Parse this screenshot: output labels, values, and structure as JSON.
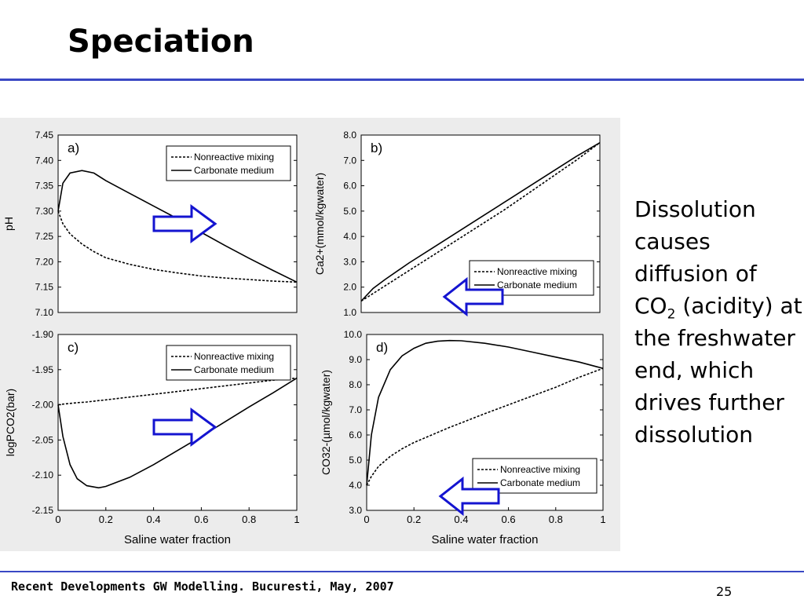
{
  "slide": {
    "title": "Speciation",
    "footer": "Recent Developments GW Modelling. Bucuresti, May, 2007",
    "page_number": "25",
    "body_before": "Dissolution causes diffusion of CO",
    "body_sub": "2",
    "body_after": " (acidity) at the freshwater end, which drives further dissolution",
    "accent_color": "#3a48c4",
    "arrow_color": "#1414d0"
  },
  "legend": [
    "Nonreactive mixing",
    "Carbonate medium"
  ],
  "chart_data": [
    {
      "type": "line",
      "panel": "a)",
      "xlabel": "",
      "ylabel": "pH",
      "xlim": [
        0,
        1
      ],
      "ylim": [
        7.1,
        7.45
      ],
      "yticks": [
        "7.10",
        "7.15",
        "7.20",
        "7.25",
        "7.30",
        "7.35",
        "7.40",
        "7.45"
      ],
      "xticks": [],
      "arrow": "right",
      "legend_position": "top-right",
      "x": [
        0,
        0.02,
        0.05,
        0.1,
        0.15,
        0.2,
        0.3,
        0.4,
        0.5,
        0.6,
        0.7,
        0.8,
        0.9,
        1.0
      ],
      "series": [
        {
          "name": "Nonreactive mixing",
          "style": "dashed",
          "values": [
            7.3,
            7.275,
            7.255,
            7.235,
            7.22,
            7.208,
            7.195,
            7.185,
            7.178,
            7.172,
            7.168,
            7.165,
            7.162,
            7.16
          ]
        },
        {
          "name": "Carbonate medium",
          "style": "solid",
          "values": [
            7.3,
            7.355,
            7.375,
            7.38,
            7.375,
            7.36,
            7.335,
            7.31,
            7.285,
            7.258,
            7.232,
            7.207,
            7.183,
            7.16
          ]
        }
      ]
    },
    {
      "type": "line",
      "panel": "b)",
      "xlabel": "",
      "ylabel": "Ca2+(mmol/kgwater)",
      "xlim": [
        0,
        1
      ],
      "ylim": [
        1.0,
        8.0
      ],
      "yticks": [
        "1.0",
        "2.0",
        "3.0",
        "4.0",
        "5.0",
        "6.0",
        "7.0",
        "8.0"
      ],
      "xticks": [],
      "arrow": "left",
      "legend_position": "bottom-right",
      "x": [
        0,
        0.05,
        0.1,
        0.2,
        0.3,
        0.4,
        0.5,
        0.6,
        0.7,
        0.8,
        0.9,
        1.0
      ],
      "series": [
        {
          "name": "Nonreactive mixing",
          "style": "dashed",
          "values": [
            1.45,
            1.75,
            2.05,
            2.65,
            3.25,
            3.85,
            4.45,
            5.05,
            5.7,
            6.35,
            7.0,
            7.7
          ]
        },
        {
          "name": "Carbonate medium",
          "style": "solid",
          "values": [
            1.45,
            1.95,
            2.3,
            2.95,
            3.55,
            4.15,
            4.75,
            5.35,
            5.95,
            6.55,
            7.15,
            7.7
          ]
        }
      ]
    },
    {
      "type": "line",
      "panel": "c)",
      "xlabel": "Saline water fraction",
      "ylabel": "logPCO2(bar)",
      "xlim": [
        0,
        1
      ],
      "ylim": [
        -2.15,
        -1.9
      ],
      "yticks": [
        "-2.15",
        "-2.10",
        "-2.05",
        "-2.00",
        "-1.95",
        "-1.90"
      ],
      "xticks": [
        "0",
        "0.2",
        "0.4",
        "0.6",
        "0.8",
        "1"
      ],
      "arrow": "right",
      "legend_position": "top-right",
      "x": [
        0,
        0.02,
        0.05,
        0.08,
        0.12,
        0.17,
        0.2,
        0.3,
        0.4,
        0.5,
        0.6,
        0.7,
        0.8,
        0.9,
        1.0
      ],
      "series": [
        {
          "name": "Nonreactive mixing",
          "style": "dashed",
          "values": [
            -2.0,
            -1.999,
            -1.998,
            -1.997,
            -1.996,
            -1.994,
            -1.993,
            -1.989,
            -1.985,
            -1.981,
            -1.977,
            -1.973,
            -1.969,
            -1.965,
            -1.962
          ]
        },
        {
          "name": "Carbonate medium",
          "style": "solid",
          "values": [
            -2.0,
            -2.045,
            -2.085,
            -2.105,
            -2.115,
            -2.118,
            -2.116,
            -2.103,
            -2.085,
            -2.065,
            -2.045,
            -2.024,
            -2.003,
            -1.983,
            -1.962
          ]
        }
      ]
    },
    {
      "type": "line",
      "panel": "d)",
      "xlabel": "Saline water fraction",
      "ylabel": "CO32-(µmol/kgwater)",
      "xlim": [
        0,
        1
      ],
      "ylim": [
        3.0,
        10.0
      ],
      "yticks": [
        "3.0",
        "4.0",
        "5.0",
        "6.0",
        "7.0",
        "8.0",
        "9.0",
        "10.0"
      ],
      "xticks": [
        "0",
        "0.2",
        "0.4",
        "0.6",
        "0.8",
        "1"
      ],
      "arrow": "left",
      "legend_position": "bottom-right",
      "x": [
        0,
        0.02,
        0.05,
        0.1,
        0.15,
        0.2,
        0.25,
        0.3,
        0.35,
        0.4,
        0.5,
        0.6,
        0.7,
        0.8,
        0.9,
        1.0
      ],
      "series": [
        {
          "name": "Nonreactive mixing",
          "style": "dashed",
          "values": [
            4.0,
            4.35,
            4.75,
            5.15,
            5.45,
            5.7,
            5.9,
            6.1,
            6.3,
            6.48,
            6.85,
            7.2,
            7.55,
            7.9,
            8.3,
            8.65
          ]
        },
        {
          "name": "Carbonate medium",
          "style": "solid",
          "values": [
            4.0,
            6.0,
            7.5,
            8.6,
            9.15,
            9.45,
            9.65,
            9.73,
            9.76,
            9.75,
            9.65,
            9.5,
            9.3,
            9.1,
            8.9,
            8.65
          ]
        }
      ]
    }
  ]
}
